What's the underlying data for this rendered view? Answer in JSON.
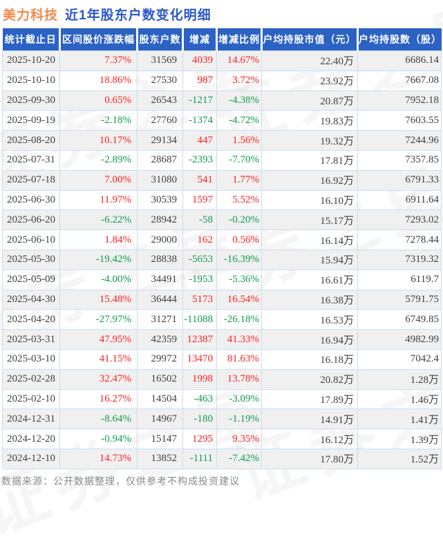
{
  "title": {
    "stock": "美力科技",
    "text": "近1年股东户数变化明细"
  },
  "watermark": {
    "text": "证券之星"
  },
  "table": {
    "headers": [
      "统计截止日",
      "区间股价涨跌幅",
      "股东户数",
      "增减",
      "增减比例",
      "户均持股市值（元）",
      "户均持股数（股）"
    ],
    "rows": [
      {
        "date": "2025-10-20",
        "range_change": "7.37%",
        "holders": "31569",
        "delta": "4039",
        "delta_pct": "14.67%",
        "avg_mv": "22.40万",
        "avg_shares": "6686.14"
      },
      {
        "date": "2025-10-10",
        "range_change": "18.86%",
        "holders": "27530",
        "delta": "987",
        "delta_pct": "3.72%",
        "avg_mv": "23.92万",
        "avg_shares": "7667.08"
      },
      {
        "date": "2025-09-30",
        "range_change": "0.65%",
        "holders": "26543",
        "delta": "-1217",
        "delta_pct": "-4.38%",
        "avg_mv": "20.87万",
        "avg_shares": "7952.18"
      },
      {
        "date": "2025-09-19",
        "range_change": "-2.18%",
        "holders": "27760",
        "delta": "-1374",
        "delta_pct": "-4.72%",
        "avg_mv": "19.83万",
        "avg_shares": "7603.55"
      },
      {
        "date": "2025-08-20",
        "range_change": "10.17%",
        "holders": "29134",
        "delta": "447",
        "delta_pct": "1.56%",
        "avg_mv": "19.32万",
        "avg_shares": "7244.96"
      },
      {
        "date": "2025-07-31",
        "range_change": "-2.89%",
        "holders": "28687",
        "delta": "-2393",
        "delta_pct": "-7.70%",
        "avg_mv": "17.81万",
        "avg_shares": "7357.85"
      },
      {
        "date": "2025-07-18",
        "range_change": "7.00%",
        "holders": "31080",
        "delta": "541",
        "delta_pct": "1.77%",
        "avg_mv": "16.92万",
        "avg_shares": "6791.33"
      },
      {
        "date": "2025-06-30",
        "range_change": "11.97%",
        "holders": "30539",
        "delta": "1597",
        "delta_pct": "5.52%",
        "avg_mv": "16.10万",
        "avg_shares": "6911.64"
      },
      {
        "date": "2025-06-20",
        "range_change": "-6.22%",
        "holders": "28942",
        "delta": "-58",
        "delta_pct": "-0.20%",
        "avg_mv": "15.17万",
        "avg_shares": "7293.02"
      },
      {
        "date": "2025-06-10",
        "range_change": "1.84%",
        "holders": "29000",
        "delta": "162",
        "delta_pct": "0.56%",
        "avg_mv": "16.14万",
        "avg_shares": "7278.44"
      },
      {
        "date": "2025-05-30",
        "range_change": "-19.42%",
        "holders": "28838",
        "delta": "-5653",
        "delta_pct": "-16.39%",
        "avg_mv": "15.94万",
        "avg_shares": "7319.32"
      },
      {
        "date": "2025-05-09",
        "range_change": "-4.00%",
        "holders": "34491",
        "delta": "-1953",
        "delta_pct": "-5.36%",
        "avg_mv": "16.61万",
        "avg_shares": "6119.7"
      },
      {
        "date": "2025-04-30",
        "range_change": "15.48%",
        "holders": "36444",
        "delta": "5173",
        "delta_pct": "16.54%",
        "avg_mv": "16.38万",
        "avg_shares": "5791.75"
      },
      {
        "date": "2025-04-20",
        "range_change": "-27.97%",
        "holders": "31271",
        "delta": "-11088",
        "delta_pct": "-26.18%",
        "avg_mv": "16.53万",
        "avg_shares": "6749.85"
      },
      {
        "date": "2025-03-31",
        "range_change": "47.95%",
        "holders": "42359",
        "delta": "12387",
        "delta_pct": "41.33%",
        "avg_mv": "16.94万",
        "avg_shares": "4982.99"
      },
      {
        "date": "2025-03-10",
        "range_change": "41.15%",
        "holders": "29972",
        "delta": "13470",
        "delta_pct": "81.63%",
        "avg_mv": "16.18万",
        "avg_shares": "7042.4"
      },
      {
        "date": "2025-02-28",
        "range_change": "32.47%",
        "holders": "16502",
        "delta": "1998",
        "delta_pct": "13.78%",
        "avg_mv": "20.82万",
        "avg_shares": "1.28万"
      },
      {
        "date": "2025-02-10",
        "range_change": "16.27%",
        "holders": "14504",
        "delta": "-463",
        "delta_pct": "-3.09%",
        "avg_mv": "17.89万",
        "avg_shares": "1.46万"
      },
      {
        "date": "2024-12-31",
        "range_change": "-8.64%",
        "holders": "14967",
        "delta": "-180",
        "delta_pct": "-1.19%",
        "avg_mv": "14.91万",
        "avg_shares": "1.41万"
      },
      {
        "date": "2024-12-20",
        "range_change": "-0.94%",
        "holders": "15147",
        "delta": "1295",
        "delta_pct": "9.35%",
        "avg_mv": "16.12万",
        "avg_shares": "1.39万"
      },
      {
        "date": "2024-12-10",
        "range_change": "14.73%",
        "holders": "13852",
        "delta": "-1111",
        "delta_pct": "-7.42%",
        "avg_mv": "17.80万",
        "avg_shares": "1.52万"
      }
    ]
  },
  "footer": {
    "note": "数据来源：公开数据整理，仅供参考不构成投资建议"
  },
  "colors": {
    "header_bg": "#2B62C4",
    "title_stock": "#F28A4D",
    "title_text": "#2B57C8",
    "positive": "#FE1E1E",
    "negative": "#0F9B4D",
    "border": "#C9DDF3",
    "row_alt": "#F0F0F0",
    "text_dark": "#404040",
    "footer_text": "#8A8A8A"
  }
}
